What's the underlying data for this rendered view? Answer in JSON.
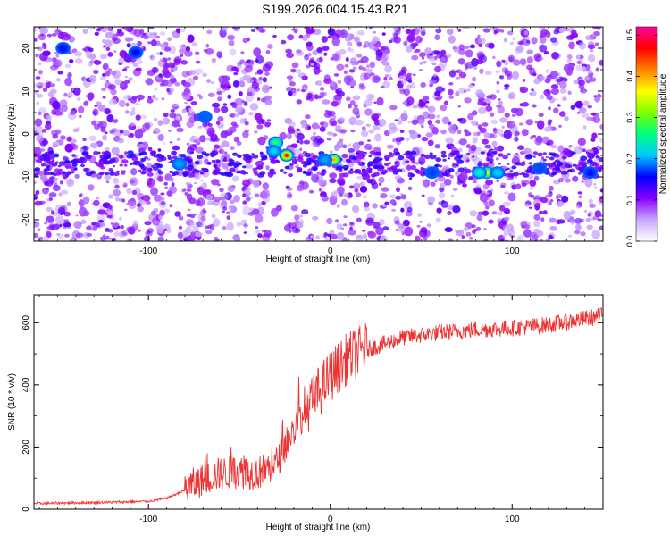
{
  "title": "S199.2026.004.15.43.R21",
  "chart_data": [
    {
      "type": "heatmap",
      "xlabel": "Height of straight line (km)",
      "ylabel": "Frequency (Hz)",
      "xlim": [
        -163,
        150
      ],
      "ylim": [
        -25,
        25
      ],
      "xticks": [
        -100,
        0,
        100
      ],
      "xtick_labels": [
        "-100",
        "0",
        "100"
      ],
      "yticks": [
        -20,
        -10,
        0,
        10,
        20
      ],
      "ytick_labels": [
        "-20",
        "-10",
        "0",
        "10",
        "20"
      ],
      "colorbar": {
        "label": "Normalized spectral amplitude",
        "range": [
          0,
          0.52
        ],
        "ticks": [
          0.0,
          0.1,
          0.2,
          0.3,
          0.4,
          0.5
        ],
        "tick_labels": [
          "0.0",
          "0.1",
          "0.2",
          "0.3",
          "0.4",
          "0.5"
        ],
        "colormap": [
          "#ffffff",
          "#c8a8ff",
          "#8800ff",
          "#0000ff",
          "#00c8ff",
          "#00ff80",
          "#7fff00",
          "#ffff00",
          "#ff8000",
          "#ff0000",
          "#ff00a0"
        ]
      },
      "features": [
        {
          "x": -24,
          "y": -5,
          "value": 0.48
        },
        {
          "x": -30,
          "y": -2,
          "value": 0.28
        },
        {
          "x": -31,
          "y": -4,
          "value": 0.22
        },
        {
          "x": 2,
          "y": -6,
          "value": 0.4
        },
        {
          "x": -3,
          "y": -6,
          "value": 0.2
        },
        {
          "x": 86,
          "y": -9,
          "value": 0.36
        },
        {
          "x": 82,
          "y": -9,
          "value": 0.25
        },
        {
          "x": 92,
          "y": -9,
          "value": 0.22
        },
        {
          "x": -83,
          "y": -7,
          "value": 0.2
        },
        {
          "x": -69,
          "y": 4,
          "value": 0.18
        },
        {
          "x": -147,
          "y": 20,
          "value": 0.15
        },
        {
          "x": -107,
          "y": 19,
          "value": 0.15
        },
        {
          "x": 56,
          "y": -9,
          "value": 0.17
        },
        {
          "x": 115,
          "y": -8,
          "value": 0.17
        },
        {
          "x": 143,
          "y": -9,
          "value": 0.15
        }
      ]
    },
    {
      "type": "line",
      "xlabel": "Height of straight line (km)",
      "ylabel": "SNR (10 * v/v)",
      "xlim": [
        -163,
        150
      ],
      "ylim": [
        0,
        690
      ],
      "xticks": [
        -100,
        0,
        100
      ],
      "xtick_labels": [
        "-100",
        "0",
        "100"
      ],
      "yticks": [
        0,
        200,
        400,
        600
      ],
      "ytick_labels": [
        "0",
        "200",
        "400",
        "600"
      ],
      "color": "#ee3333",
      "series": [
        {
          "x": [
            -163,
            -140,
            -120,
            -100,
            -90,
            -80,
            -70,
            -60,
            -50,
            -40,
            -30,
            -20,
            -15,
            -10,
            -5,
            0,
            5,
            10,
            20,
            30,
            40,
            60,
            80,
            100,
            120,
            140,
            150
          ],
          "y": [
            18,
            20,
            22,
            25,
            35,
            60,
            90,
            110,
            115,
            110,
            140,
            250,
            300,
            340,
            380,
            420,
            450,
            480,
            510,
            530,
            550,
            565,
            575,
            580,
            590,
            610,
            620
          ]
        }
      ]
    }
  ]
}
